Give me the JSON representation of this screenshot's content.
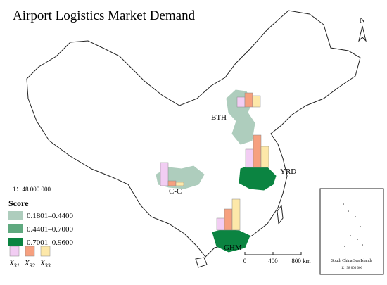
{
  "title": "Airport Logistics Market Demand",
  "north": "N",
  "scale_ratio": "1：48 000 000",
  "legend": {
    "title": "Score",
    "classes": [
      {
        "label": "0.1801–0.4400",
        "color": "#aecdbd"
      },
      {
        "label": "0.4401–0.7000",
        "color": "#5fa97f"
      },
      {
        "label": "0.7001–0.9600",
        "color": "#0b8441"
      }
    ],
    "bars": [
      {
        "symbol": "X",
        "sub": "31",
        "color": "#f2cdf3"
      },
      {
        "symbol": "X",
        "sub": "32",
        "color": "#f6a07f"
      },
      {
        "symbol": "X",
        "sub": "33",
        "color": "#fde8a9"
      }
    ]
  },
  "regions": [
    {
      "name": "BTH",
      "class": 0,
      "values": [
        14,
        20,
        16
      ]
    },
    {
      "name": "YRD",
      "class": 2,
      "values": [
        26,
        46,
        30
      ]
    },
    {
      "name": "C-C",
      "class": 0,
      "values": [
        33,
        7,
        5
      ]
    },
    {
      "name": "GHM",
      "class": 2,
      "values": [
        17,
        30,
        44
      ]
    }
  ],
  "scale_bar": [
    "0",
    "400",
    "800 km"
  ],
  "inset": {
    "title": "South China Sea Islands",
    "ratio": "1：98 000 000"
  }
}
